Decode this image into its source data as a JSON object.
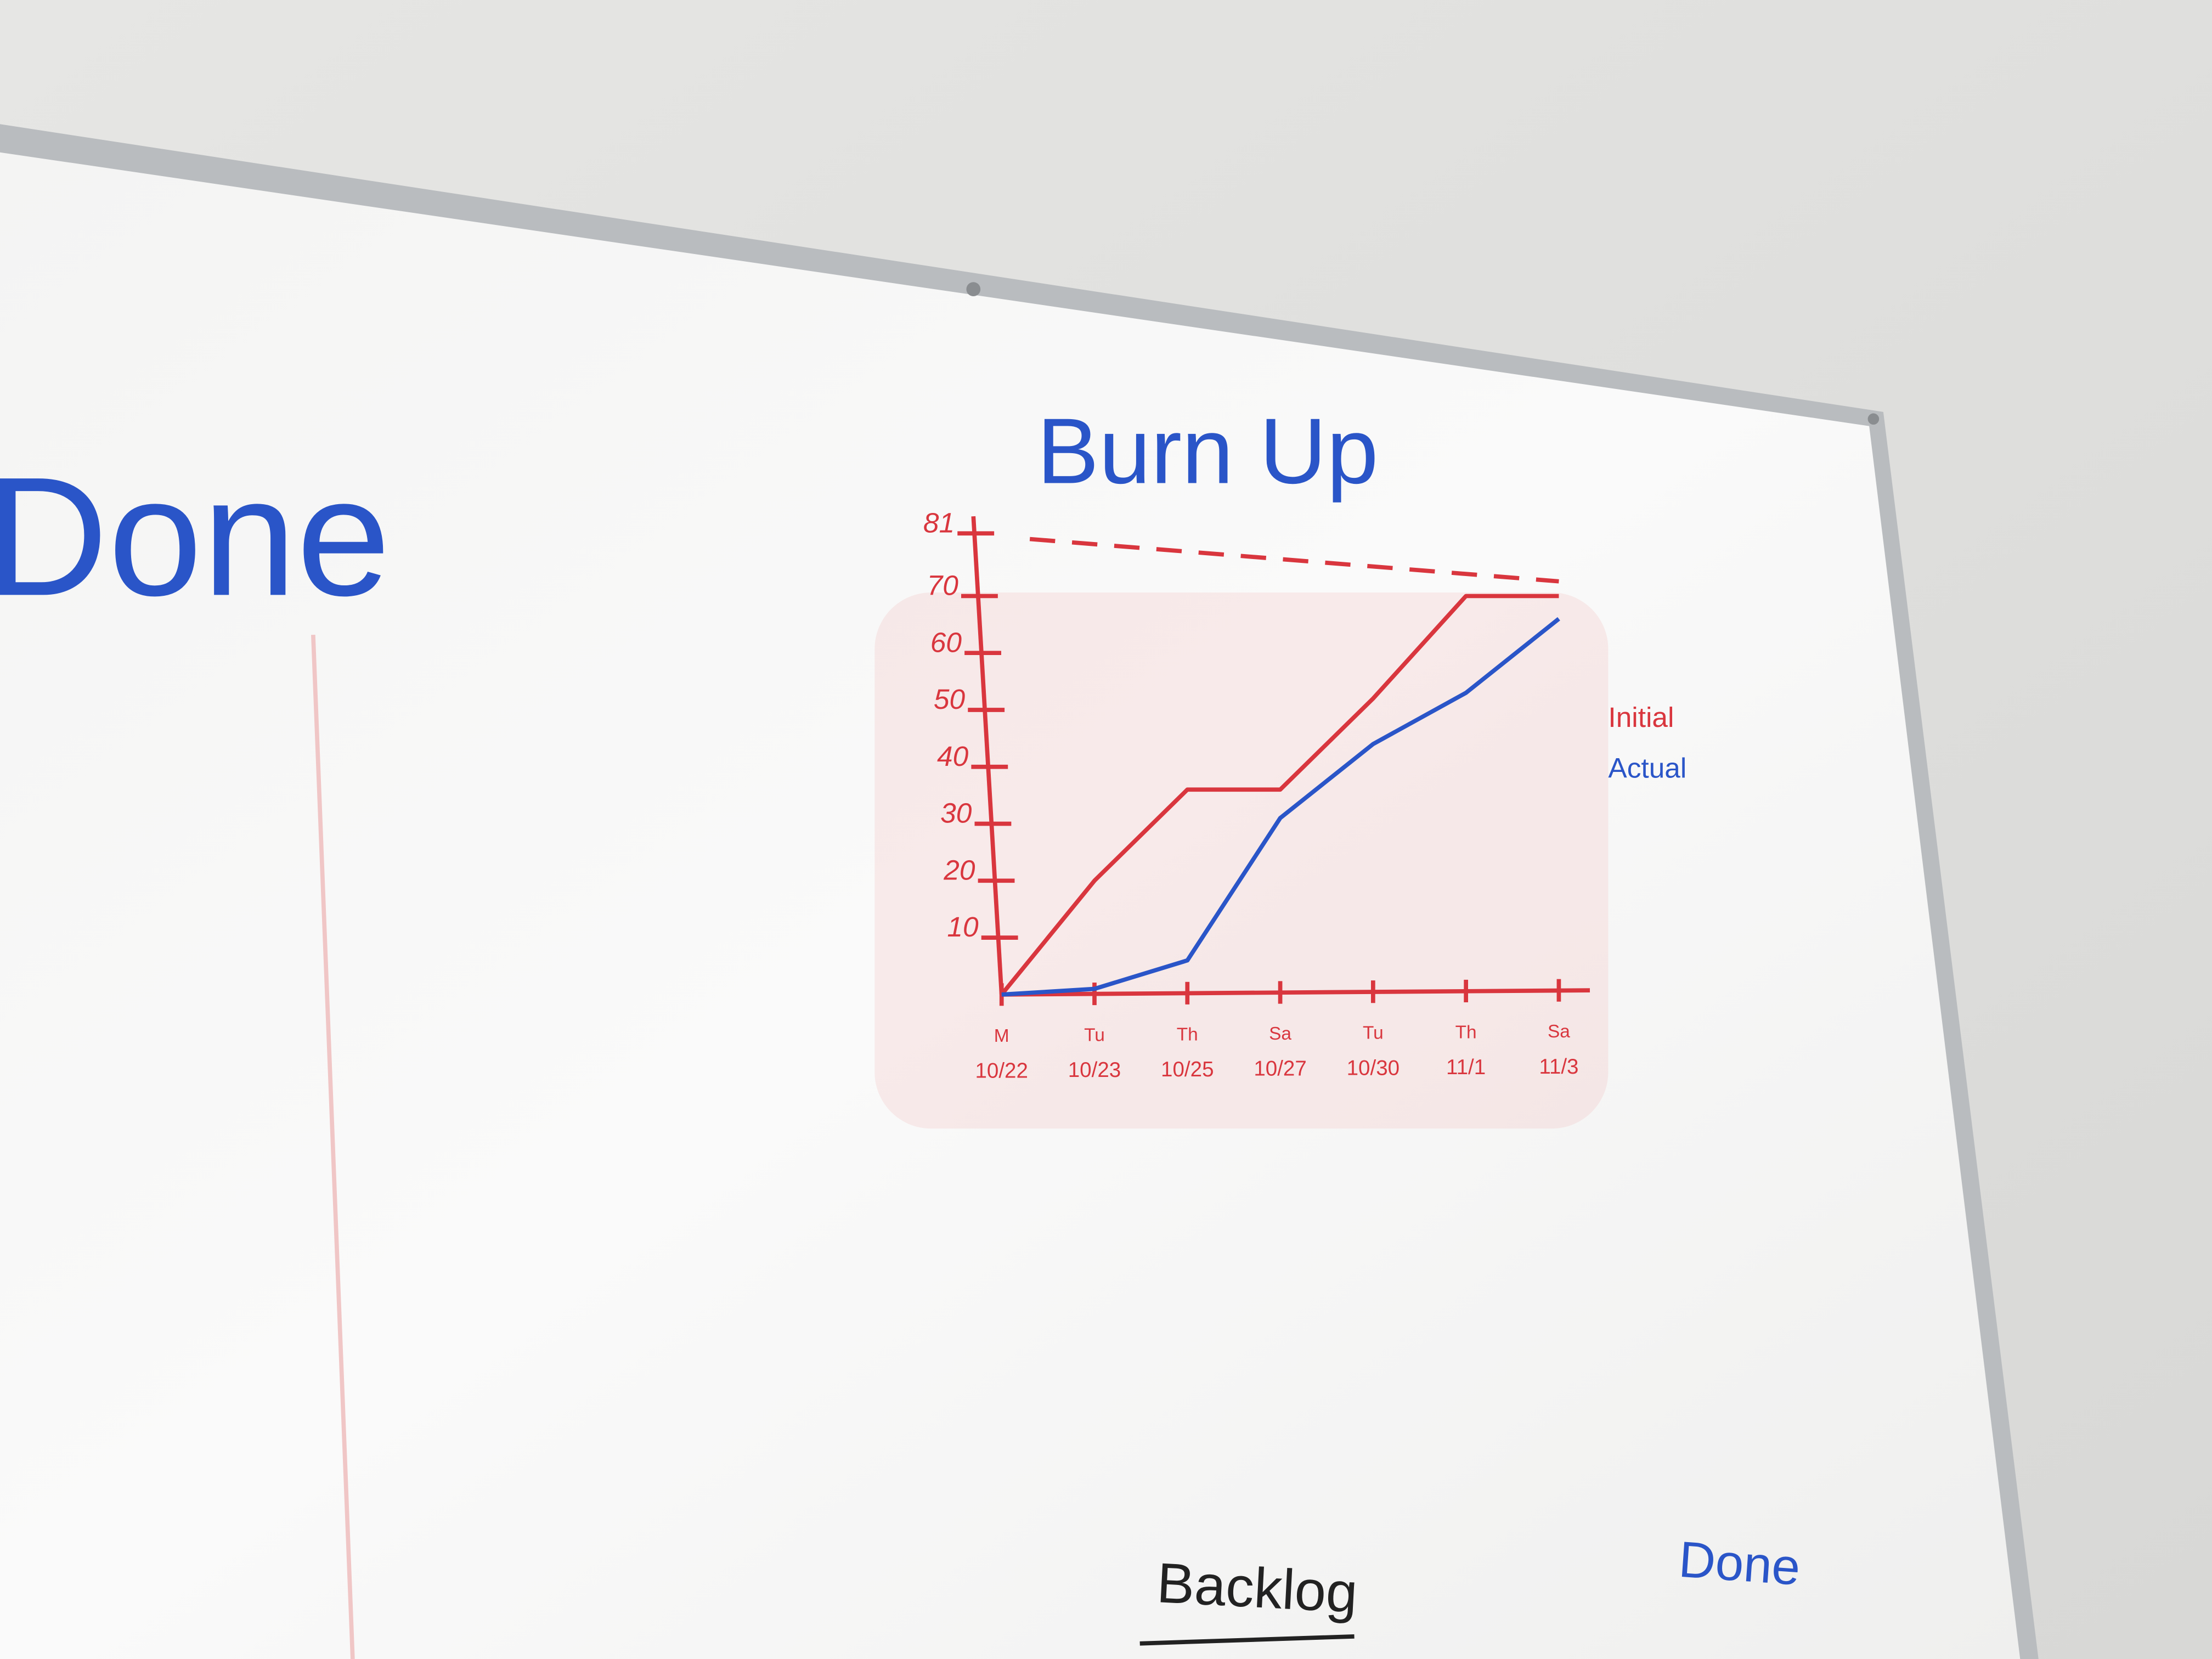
{
  "board": {
    "heading": "Done",
    "columns": [
      "Backlog",
      "Done"
    ]
  },
  "chart_data": {
    "type": "line",
    "title": "Burn Up",
    "categories": [
      "10/22",
      "10/23",
      "10/25",
      "10/27",
      "10/30",
      "11/1",
      "11/3"
    ],
    "weekdays": [
      "M",
      "Tu",
      "Th",
      "Sa",
      "Tu",
      "Th",
      "Sa"
    ],
    "series": [
      {
        "name": "Initial",
        "color": "#d9363e",
        "values": [
          0,
          20,
          36,
          36,
          52,
          70,
          70
        ]
      },
      {
        "name": "Actual",
        "color": "#2a55c8",
        "values": [
          0,
          1,
          6,
          31,
          44,
          53,
          66
        ]
      }
    ],
    "reference_line": {
      "value": 81,
      "style": "dashed",
      "color": "#d9363e"
    },
    "ylim": [
      0,
      84
    ],
    "yticks": [
      10,
      20,
      30,
      40,
      50,
      60,
      70,
      81
    ],
    "axis_color": "#d9363e",
    "legend": "right"
  }
}
